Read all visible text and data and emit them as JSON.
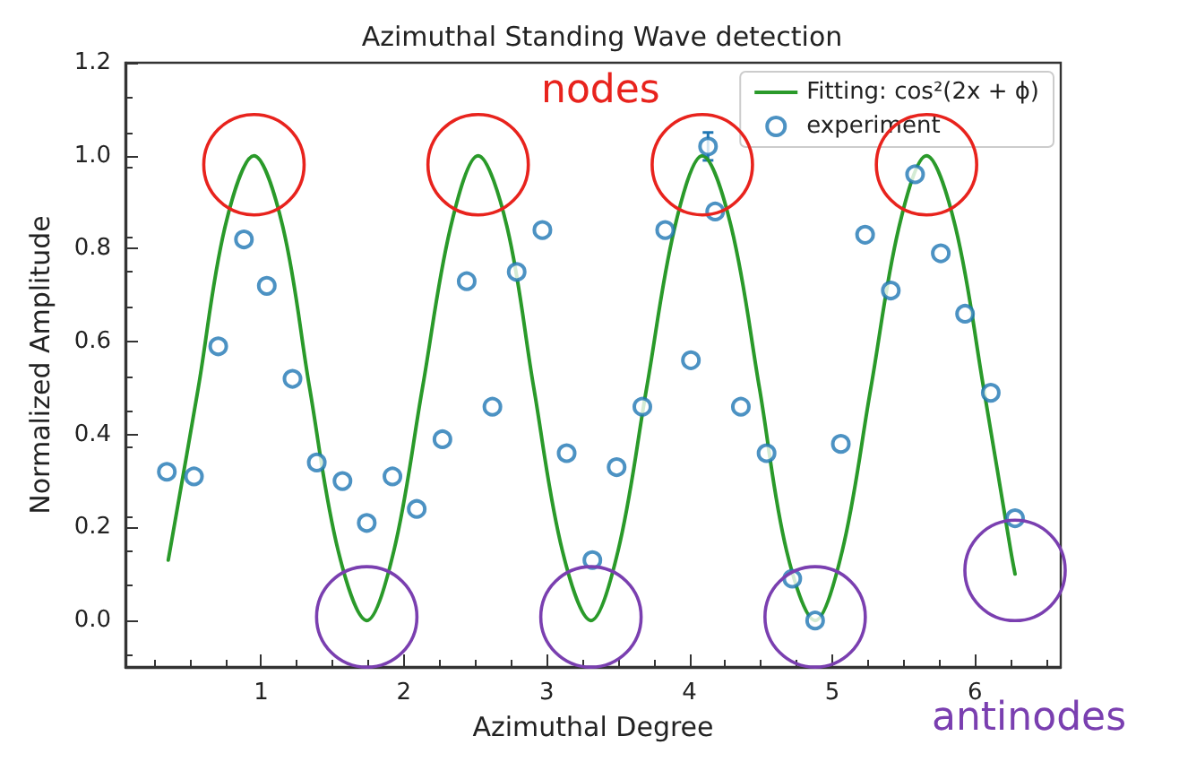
{
  "chart_data": {
    "type": "scatter",
    "title": "Azimuthal Standing Wave detection",
    "xlabel": "Azimuthal Degree",
    "ylabel": "Normalized Amplitude",
    "xlim": [
      0.05,
      6.6
    ],
    "xticks": [
      1,
      2,
      3,
      4,
      5,
      6
    ],
    "ylim": [
      -0.1,
      1.2
    ],
    "yticks": [
      {
        "value": 0,
        "label": "0.0"
      },
      0.2,
      0.4,
      0.6,
      0.8,
      {
        "value": 1,
        "label": "1.0"
      },
      1.2
    ],
    "legend": "top right",
    "grid": false,
    "annotations": [
      "nodes",
      "antinodes"
    ],
    "series": [
      {
        "name": "Fitting: cos²(2x + ϕ)",
        "type": "line",
        "color": "#2a9a2a",
        "marker": "none",
        "line_style": "solid",
        "x": [
          0.35,
          0.56,
          0.75,
          0.95,
          1.15,
          1.34,
          1.54,
          1.74,
          1.93,
          2.13,
          2.33,
          2.52,
          2.72,
          2.91,
          3.11,
          3.31,
          3.5,
          3.7,
          3.9,
          4.09,
          4.29,
          4.49,
          4.68,
          4.88,
          5.07,
          5.27,
          5.47,
          5.66,
          5.86,
          6.06,
          6.25,
          6.28
        ],
        "values": [
          0.13,
          0.5,
          0.85,
          1.0,
          0.85,
          0.5,
          0.15,
          0.0,
          0.15,
          0.5,
          0.85,
          1.0,
          0.85,
          0.5,
          0.15,
          0.0,
          0.15,
          0.5,
          0.85,
          1.0,
          0.85,
          0.5,
          0.15,
          0.0,
          0.15,
          0.5,
          0.85,
          1.0,
          0.85,
          0.5,
          0.15,
          0.1
        ]
      },
      {
        "name": "experiment",
        "color": "#1f77b4",
        "marker": "circle",
        "x": [
          0.34,
          0.53,
          0.7,
          0.88,
          1.04,
          1.22,
          1.39,
          1.57,
          1.74,
          1.92,
          2.09,
          2.27,
          2.44,
          2.62,
          2.79,
          2.97,
          3.14,
          3.32,
          3.49,
          3.67,
          3.83,
          4.01,
          4.13,
          4.18,
          4.36,
          4.54,
          4.72,
          4.88,
          5.06,
          5.23,
          5.41,
          5.58,
          5.76,
          5.93,
          6.11,
          6.28
        ],
        "values": [
          0.32,
          0.31,
          0.59,
          0.82,
          0.72,
          0.52,
          0.34,
          0.3,
          0.21,
          0.31,
          0.24,
          0.39,
          0.73,
          0.46,
          0.75,
          0.84,
          0.36,
          0.13,
          0.33,
          0.46,
          0.84,
          0.56,
          1.02,
          0.88,
          0.46,
          0.36,
          0.09,
          0.0,
          0.38,
          0.83,
          0.71,
          0.96,
          0.79,
          0.66,
          0.49,
          0.22
        ],
        "errors": [
          null,
          null,
          null,
          null,
          null,
          null,
          null,
          null,
          null,
          null,
          null,
          null,
          null,
          null,
          null,
          null,
          null,
          null,
          null,
          null,
          null,
          null,
          0.03,
          null,
          null,
          null,
          null,
          null,
          null,
          null,
          null,
          null,
          null,
          null,
          null,
          null
        ]
      }
    ]
  }
}
